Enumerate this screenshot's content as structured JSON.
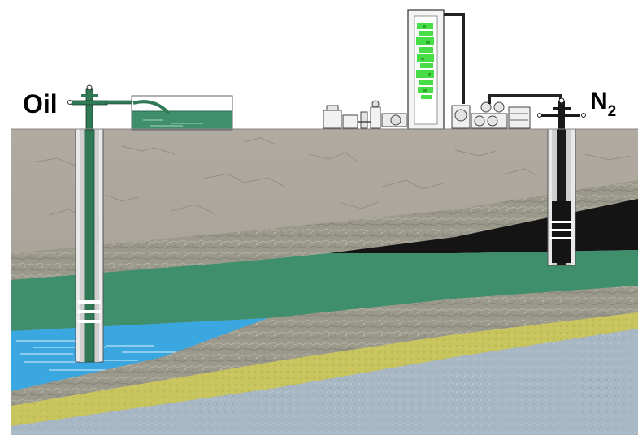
{
  "labels": {
    "oil": "Oil",
    "n2_main": "N",
    "n2_sub": "2"
  },
  "colors": {
    "sky": "#ffffff",
    "overburden": "#a6a097",
    "rock_texture": "#9c9a8c",
    "oil_zone": "#3e8e6b",
    "gas_cap": "#151515",
    "water": "#3aa6e0",
    "yellow_sand": "#c7c45c",
    "basement": "#a9b9c6",
    "oil_in_well": "#2f7a55",
    "nitrogen_tower_fill": "#44dd44"
  },
  "icons": [
    "oil-wellhead-icon",
    "storage-tank-icon",
    "nitrogen-plant-icon",
    "compressor-icon",
    "injection-wellhead-icon"
  ]
}
